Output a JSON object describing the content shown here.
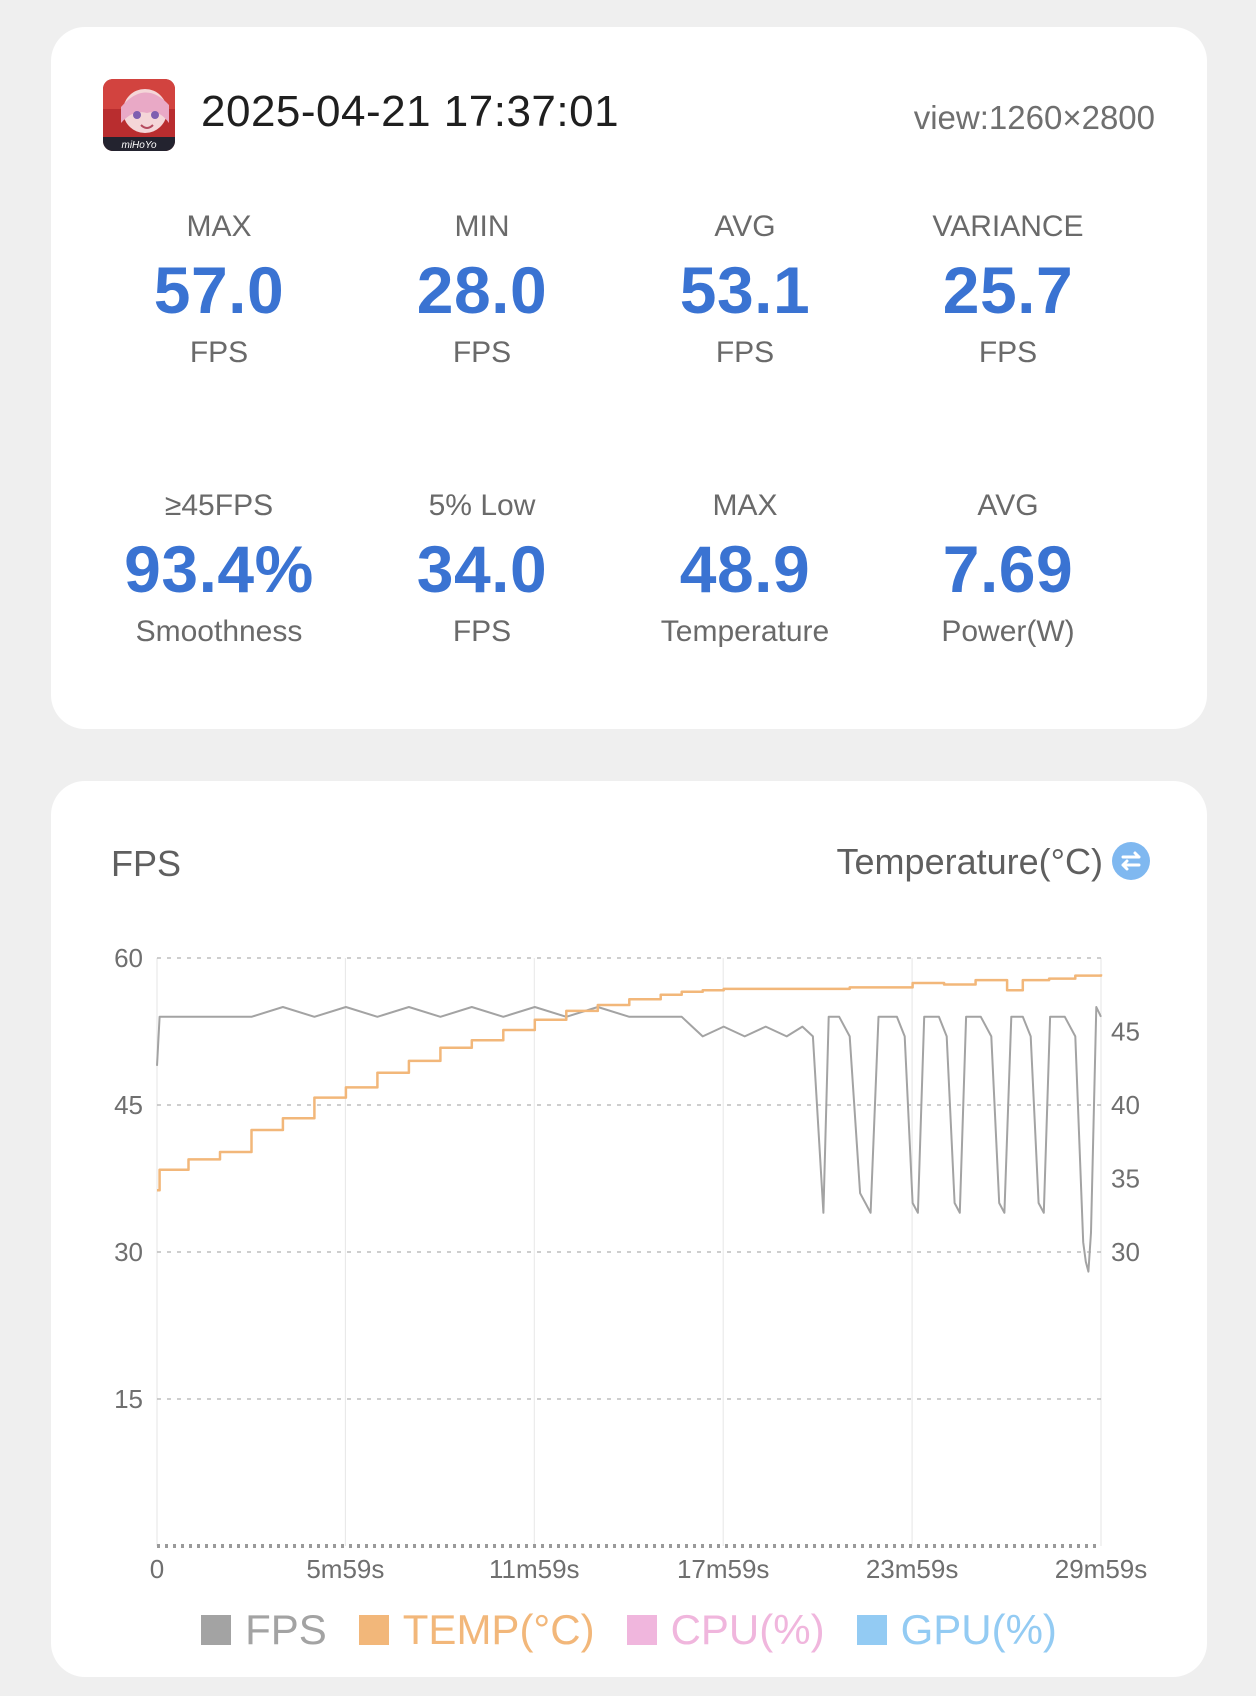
{
  "header": {
    "datetime": "2025-04-21 17:37:01",
    "view": "view:1260×2800",
    "app_icon_text": "miHoYo"
  },
  "stats": [
    {
      "label": "MAX",
      "value": "57.0",
      "unit": "FPS"
    },
    {
      "label": "MIN",
      "value": "28.0",
      "unit": "FPS"
    },
    {
      "label": "AVG",
      "value": "53.1",
      "unit": "FPS"
    },
    {
      "label": "VARIANCE",
      "value": "25.7",
      "unit": "FPS"
    },
    {
      "label": "≥45FPS",
      "value": "93.4%",
      "unit": "Smoothness"
    },
    {
      "label": "5% Low",
      "value": "34.0",
      "unit": "FPS"
    },
    {
      "label": "MAX",
      "value": "48.9",
      "unit": "Temperature"
    },
    {
      "label": "AVG",
      "value": "7.69",
      "unit": "Power(W)"
    }
  ],
  "chart_header": {
    "left_title": "FPS",
    "right_title": "Temperature(°C)",
    "swap_icon": "swap-arrows-icon"
  },
  "chart_data": {
    "type": "line",
    "x_labels": [
      "0",
      "5m59s",
      "11m59s",
      "17m59s",
      "23m59s",
      "29m59s"
    ],
    "x_seconds": [
      0,
      359,
      719,
      1079,
      1439,
      1799
    ],
    "y_left_ticks": [
      15,
      30,
      45,
      60
    ],
    "y_left_range": [
      0,
      60
    ],
    "y_right_ticks": [
      30,
      35,
      40,
      45
    ],
    "y_right_range": [
      30,
      50
    ],
    "grid": true,
    "legend_position": "bottom",
    "series": [
      {
        "name": "FPS",
        "color": "#a3a3a3",
        "axis": "left",
        "points": [
          [
            0,
            49
          ],
          [
            5,
            54
          ],
          [
            60,
            54
          ],
          [
            120,
            54
          ],
          [
            180,
            54
          ],
          [
            240,
            55
          ],
          [
            300,
            54
          ],
          [
            360,
            55
          ],
          [
            420,
            54
          ],
          [
            480,
            55
          ],
          [
            540,
            54
          ],
          [
            600,
            55
          ],
          [
            660,
            54
          ],
          [
            720,
            55
          ],
          [
            780,
            54
          ],
          [
            840,
            55
          ],
          [
            900,
            54
          ],
          [
            960,
            54
          ],
          [
            1000,
            54
          ],
          [
            1020,
            53
          ],
          [
            1040,
            52
          ],
          [
            1080,
            53
          ],
          [
            1120,
            52
          ],
          [
            1160,
            53
          ],
          [
            1200,
            52
          ],
          [
            1230,
            53
          ],
          [
            1250,
            52
          ],
          [
            1270,
            34
          ],
          [
            1280,
            54
          ],
          [
            1300,
            54
          ],
          [
            1320,
            52
          ],
          [
            1340,
            36
          ],
          [
            1350,
            35
          ],
          [
            1360,
            34
          ],
          [
            1375,
            54
          ],
          [
            1410,
            54
          ],
          [
            1425,
            52
          ],
          [
            1440,
            35
          ],
          [
            1450,
            34
          ],
          [
            1462,
            54
          ],
          [
            1490,
            54
          ],
          [
            1505,
            52
          ],
          [
            1520,
            35
          ],
          [
            1530,
            34
          ],
          [
            1542,
            54
          ],
          [
            1570,
            54
          ],
          [
            1590,
            52
          ],
          [
            1605,
            35
          ],
          [
            1615,
            34
          ],
          [
            1628,
            54
          ],
          [
            1650,
            54
          ],
          [
            1665,
            52
          ],
          [
            1680,
            35
          ],
          [
            1690,
            34
          ],
          [
            1702,
            54
          ],
          [
            1730,
            54
          ],
          [
            1750,
            52
          ],
          [
            1765,
            31
          ],
          [
            1770,
            29
          ],
          [
            1775,
            28
          ],
          [
            1780,
            32
          ],
          [
            1790,
            55
          ],
          [
            1799,
            54
          ]
        ]
      },
      {
        "name": "TEMP(°C)",
        "color": "#f2b77a",
        "axis": "right",
        "points": [
          [
            0,
            34.2
          ],
          [
            5,
            35.6
          ],
          [
            60,
            36.3
          ],
          [
            120,
            36.8
          ],
          [
            180,
            38.3
          ],
          [
            240,
            39.1
          ],
          [
            300,
            40.5
          ],
          [
            360,
            41.2
          ],
          [
            420,
            42.2
          ],
          [
            480,
            43.0
          ],
          [
            540,
            43.9
          ],
          [
            600,
            44.4
          ],
          [
            660,
            45.1
          ],
          [
            720,
            45.8
          ],
          [
            780,
            46.4
          ],
          [
            840,
            46.8
          ],
          [
            900,
            47.2
          ],
          [
            960,
            47.5
          ],
          [
            1000,
            47.7
          ],
          [
            1040,
            47.8
          ],
          [
            1080,
            47.9
          ],
          [
            1200,
            47.9
          ],
          [
            1320,
            48.0
          ],
          [
            1440,
            48.3
          ],
          [
            1500,
            48.2
          ],
          [
            1560,
            48.5
          ],
          [
            1620,
            47.8
          ],
          [
            1650,
            48.5
          ],
          [
            1700,
            48.6
          ],
          [
            1750,
            48.8
          ],
          [
            1799,
            48.9
          ]
        ]
      },
      {
        "name": "CPU(%)",
        "color": "#f0b6dd",
        "axis": "left",
        "points": []
      },
      {
        "name": "GPU(%)",
        "color": "#93cbf3",
        "axis": "left",
        "points": []
      }
    ]
  }
}
